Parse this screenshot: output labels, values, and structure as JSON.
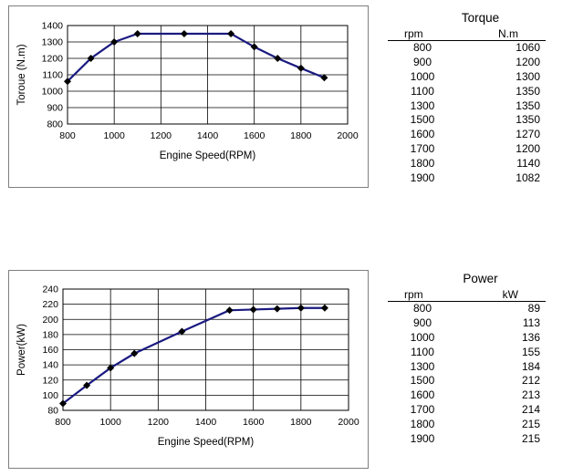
{
  "chart_data": [
    {
      "type": "line",
      "xlabel": "Engine Speed(RPM)",
      "ylabel": "Toroue (N.m)",
      "xlim": [
        800,
        2000
      ],
      "ylim": [
        800,
        1400
      ],
      "xticks": [
        "800",
        "1000",
        "1200",
        "1400",
        "1600",
        "1800",
        "2000"
      ],
      "yticks": [
        "800",
        "900",
        "1000",
        "1100",
        "1200",
        "1300",
        "1400"
      ],
      "x": [
        800,
        900,
        1000,
        1100,
        1300,
        1500,
        1600,
        1700,
        1800,
        1900
      ],
      "series": [
        {
          "values": [
            1060,
            1200,
            1300,
            1350,
            1350,
            1350,
            1270,
            1200,
            1140,
            1082
          ]
        }
      ],
      "grid": true,
      "line_color": "#1a1a80"
    },
    {
      "type": "line",
      "xlabel": "Engine Speed(RPM)",
      "ylabel": "Power(kW)",
      "xlim": [
        800,
        2000
      ],
      "ylim": [
        80,
        240
      ],
      "xticks": [
        "800",
        "1000",
        "1200",
        "1400",
        "1600",
        "1800",
        "2000"
      ],
      "yticks": [
        "80",
        "100",
        "120",
        "140",
        "160",
        "180",
        "200",
        "220",
        "240"
      ],
      "x": [
        800,
        900,
        1000,
        1100,
        1300,
        1500,
        1600,
        1700,
        1800,
        1900
      ],
      "series": [
        {
          "values": [
            89,
            113,
            136,
            155,
            184,
            212,
            213,
            214,
            215,
            215
          ]
        }
      ],
      "grid": true,
      "line_color": "#1a1a80"
    }
  ],
  "tables": {
    "torque": {
      "title": "Torque",
      "col1": "rpm",
      "col2": "N.m",
      "rows": [
        [
          "800",
          "1060"
        ],
        [
          "900",
          "1200"
        ],
        [
          "1000",
          "1300"
        ],
        [
          "1100",
          "1350"
        ],
        [
          "1300",
          "1350"
        ],
        [
          "1500",
          "1350"
        ],
        [
          "1600",
          "1270"
        ],
        [
          "1700",
          "1200"
        ],
        [
          "1800",
          "1140"
        ],
        [
          "1900",
          "1082"
        ]
      ]
    },
    "power": {
      "title": "Power",
      "col1": "rpm",
      "col2": "kW",
      "rows": [
        [
          "800",
          "89"
        ],
        [
          "900",
          "113"
        ],
        [
          "1000",
          "136"
        ],
        [
          "1100",
          "155"
        ],
        [
          "1300",
          "184"
        ],
        [
          "1500",
          "212"
        ],
        [
          "1600",
          "213"
        ],
        [
          "1700",
          "214"
        ],
        [
          "1800",
          "215"
        ],
        [
          "1900",
          "215"
        ]
      ]
    }
  }
}
